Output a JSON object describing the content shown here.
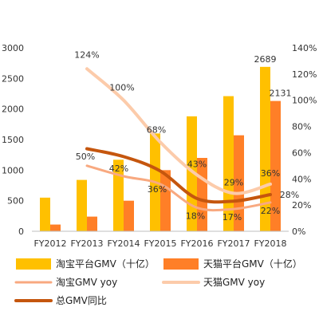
{
  "chart_data": {
    "type": "bar",
    "categories": [
      "FY2012",
      "FY2013",
      "FY2014",
      "FY2015",
      "FY2016",
      "FY2017",
      "FY2018"
    ],
    "ylim": [
      0,
      3000
    ],
    "y2lim": [
      0,
      140
    ],
    "left_ticks": [
      "0",
      "500",
      "1000",
      "1500",
      "2000",
      "2500",
      "3000"
    ],
    "right_ticks": [
      "0%",
      "20%",
      "40%",
      "60%",
      "80%",
      "100%",
      "120%",
      "140%"
    ],
    "bar_series": [
      {
        "name": "淘宝平台GMV（十亿）",
        "values": [
          550,
          840,
          1170,
          1600,
          1880,
          2210,
          2689
        ],
        "color": "#FFC000"
      },
      {
        "name": "天猫平台GMV（十亿）",
        "values": [
          110,
          240,
          500,
          1000,
          1200,
          1570,
          2131
        ],
        "color": "#FF7F27"
      }
    ],
    "line_series": [
      {
        "name": "淘宝GMV yoy",
        "values": [
          null,
          50,
          42,
          36,
          18,
          17,
          22
        ],
        "color": "#F8A980",
        "width": 3
      },
      {
        "name": "天猫GMV yoy",
        "values": [
          null,
          124,
          100,
          68,
          43,
          29,
          36
        ],
        "color": "#FCCBAA",
        "width": 4
      },
      {
        "name": "总GMV同比",
        "values": [
          null,
          63,
          57,
          46,
          25,
          23,
          28
        ],
        "color": "#C5560E",
        "width": 4
      }
    ],
    "data_labels": {
      "taobao_2018": "2689",
      "tmall_2018": "2131",
      "tmall_yoy": [
        "124%",
        "100%",
        "68%",
        "43%",
        "29%",
        "36%"
      ],
      "taobao_yoy": [
        "50%",
        "42%",
        "36%",
        "18%",
        "17%",
        "22%"
      ],
      "total_yoy_2018": "28%"
    },
    "legend_position": "bottom"
  }
}
